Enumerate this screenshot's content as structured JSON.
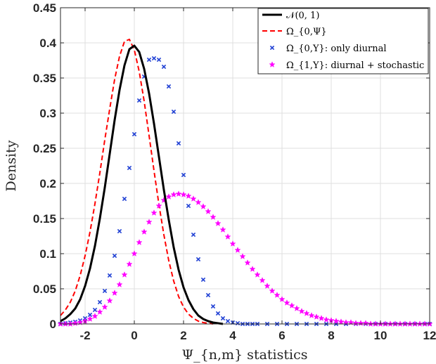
{
  "chart_data": {
    "type": "line",
    "xlabel": "Ψ_{n,m} statistics",
    "ylabel": "Density",
    "xlim": [
      -3,
      12
    ],
    "ylim": [
      0,
      0.45
    ],
    "xticks": [
      -2,
      0,
      2,
      4,
      6,
      8,
      10,
      12
    ],
    "xtick_labels": [
      "-2",
      "0",
      "2",
      "4",
      "6",
      "8",
      "10",
      "12"
    ],
    "yticks": [
      0,
      0.05,
      0.1,
      0.15,
      0.2,
      0.25,
      0.3,
      0.35,
      0.4,
      0.45
    ],
    "ytick_labels": [
      "0",
      "0.05",
      "0.1",
      "0.15",
      "0.2",
      "0.25",
      "0.3",
      "0.35",
      "0.4",
      "0.45"
    ],
    "grid": true,
    "legend_position": "top-right",
    "series": [
      {
        "name": "𝒩(0, 1)",
        "style": "solid-line",
        "color": "#000000",
        "x": [
          -3.0,
          -2.8,
          -2.6,
          -2.4,
          -2.2,
          -2.0,
          -1.8,
          -1.6,
          -1.4,
          -1.2,
          -1.0,
          -0.8,
          -0.6,
          -0.4,
          -0.2,
          0.0,
          0.2,
          0.4,
          0.6,
          0.8,
          1.0,
          1.2,
          1.4,
          1.6,
          1.8,
          2.0,
          2.2,
          2.4,
          2.6,
          2.8,
          3.0,
          3.2,
          3.4,
          3.6
        ],
        "y": [
          0.004,
          0.008,
          0.014,
          0.022,
          0.035,
          0.054,
          0.079,
          0.111,
          0.15,
          0.194,
          0.242,
          0.29,
          0.333,
          0.368,
          0.391,
          0.396,
          0.387,
          0.363,
          0.328,
          0.285,
          0.238,
          0.191,
          0.148,
          0.109,
          0.077,
          0.052,
          0.034,
          0.021,
          0.012,
          0.007,
          0.004,
          0.002,
          0.001,
          0.0
        ]
      },
      {
        "name": "Ω_{0,Ψ}",
        "style": "dashed-line",
        "color": "#ff0000",
        "x": [
          -3.0,
          -2.8,
          -2.6,
          -2.4,
          -2.2,
          -2.0,
          -1.8,
          -1.6,
          -1.4,
          -1.2,
          -1.0,
          -0.8,
          -0.6,
          -0.4,
          -0.2,
          0.0,
          0.2,
          0.4,
          0.6,
          0.8,
          1.0,
          1.2,
          1.4,
          1.6,
          1.8,
          2.0,
          2.2,
          2.4,
          2.6,
          2.8,
          3.0,
          3.2
        ],
        "y": [
          0.012,
          0.02,
          0.031,
          0.047,
          0.069,
          0.097,
          0.131,
          0.171,
          0.215,
          0.262,
          0.306,
          0.348,
          0.381,
          0.402,
          0.405,
          0.39,
          0.359,
          0.317,
          0.268,
          0.218,
          0.17,
          0.127,
          0.09,
          0.061,
          0.039,
          0.024,
          0.014,
          0.008,
          0.004,
          0.002,
          0.001,
          0.0
        ]
      },
      {
        "name": "Ω_{0,Υ}: only diurnal",
        "style": "x-markers",
        "color": "#1f3fd4",
        "x": [
          -3.0,
          -2.8,
          -2.6,
          -2.4,
          -2.2,
          -2.0,
          -1.8,
          -1.6,
          -1.4,
          -1.2,
          -1.0,
          -0.8,
          -0.6,
          -0.4,
          -0.2,
          0.0,
          0.2,
          0.4,
          0.6,
          0.8,
          1.0,
          1.2,
          1.4,
          1.6,
          1.8,
          2.0,
          2.2,
          2.4,
          2.6,
          2.8,
          3.0,
          3.2,
          3.4,
          3.6,
          3.8,
          4.0,
          4.2,
          4.4,
          4.6,
          4.8,
          5.0,
          5.4,
          5.8,
          6.2,
          6.6,
          7.0,
          7.4,
          7.8,
          8.2,
          8.6,
          9.0,
          9.4,
          9.8,
          10.2,
          10.6,
          11.0,
          11.4,
          11.8,
          12.0
        ],
        "y": [
          0.0,
          0.001,
          0.002,
          0.003,
          0.005,
          0.008,
          0.013,
          0.02,
          0.031,
          0.047,
          0.069,
          0.097,
          0.132,
          0.178,
          0.222,
          0.27,
          0.318,
          0.352,
          0.376,
          0.378,
          0.376,
          0.366,
          0.338,
          0.302,
          0.257,
          0.212,
          0.168,
          0.127,
          0.092,
          0.063,
          0.041,
          0.025,
          0.015,
          0.008,
          0.004,
          0.002,
          0.001,
          0.0,
          0.0,
          0.0,
          0.0,
          0.0,
          0.0,
          0.0,
          0.0,
          0.0,
          0.0,
          0.0,
          0.0,
          0.0,
          0.0,
          0.0,
          0.0,
          0.0,
          0.0,
          0.0,
          0.0,
          0.0,
          0.0
        ]
      },
      {
        "name": "Ω_{1,Υ}: diurnal + stochastic",
        "style": "star-markers",
        "color": "#ff00ff",
        "x": [
          -3.0,
          -2.8,
          -2.6,
          -2.4,
          -2.2,
          -2.0,
          -1.8,
          -1.6,
          -1.4,
          -1.2,
          -1.0,
          -0.8,
          -0.6,
          -0.4,
          -0.2,
          0.0,
          0.2,
          0.4,
          0.6,
          0.8,
          1.0,
          1.2,
          1.4,
          1.6,
          1.8,
          2.0,
          2.2,
          2.4,
          2.6,
          2.8,
          3.0,
          3.2,
          3.4,
          3.6,
          3.8,
          4.0,
          4.2,
          4.4,
          4.6,
          4.8,
          5.0,
          5.2,
          5.4,
          5.6,
          5.8,
          6.0,
          6.2,
          6.4,
          6.6,
          6.8,
          7.0,
          7.2,
          7.4,
          7.6,
          7.8,
          8.0,
          8.2,
          8.4,
          8.6,
          8.8,
          9.0,
          9.2,
          9.4,
          9.6,
          9.8,
          10.0,
          10.2,
          10.4,
          10.6,
          10.8,
          11.0,
          11.2,
          11.4,
          11.6,
          11.8,
          12.0
        ],
        "y": [
          0.0,
          0.0,
          0.0,
          0.001,
          0.002,
          0.004,
          0.007,
          0.011,
          0.017,
          0.024,
          0.033,
          0.044,
          0.056,
          0.07,
          0.085,
          0.1,
          0.116,
          0.131,
          0.145,
          0.158,
          0.168,
          0.176,
          0.181,
          0.184,
          0.185,
          0.184,
          0.182,
          0.178,
          0.173,
          0.167,
          0.16,
          0.152,
          0.143,
          0.134,
          0.124,
          0.114,
          0.105,
          0.096,
          0.087,
          0.078,
          0.07,
          0.062,
          0.054,
          0.047,
          0.041,
          0.035,
          0.03,
          0.026,
          0.022,
          0.018,
          0.015,
          0.012,
          0.01,
          0.008,
          0.006,
          0.005,
          0.004,
          0.003,
          0.002,
          0.002,
          0.001,
          0.001,
          0.001,
          0.0,
          0.0,
          0.0,
          0.0,
          0.0,
          0.0,
          0.0,
          0.0,
          0.0,
          0.0,
          0.0,
          0.0,
          0.0
        ]
      }
    ]
  }
}
